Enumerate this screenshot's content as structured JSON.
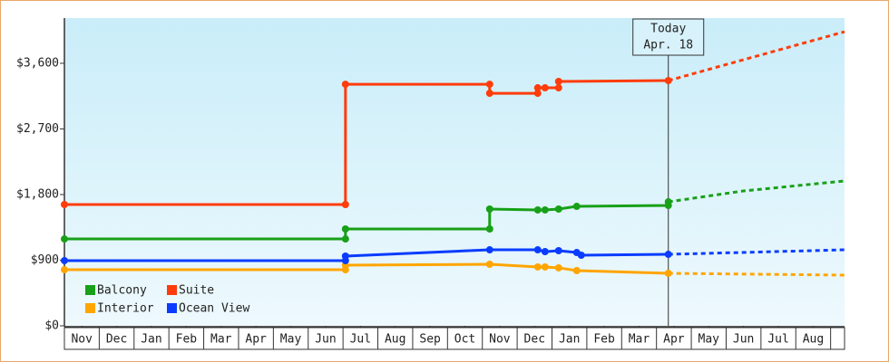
{
  "chart_data": {
    "type": "line",
    "xlim": [
      0,
      22.4
    ],
    "ylim": [
      0,
      4220
    ],
    "xticks": [
      {
        "value": 0.5,
        "label": "Nov"
      },
      {
        "value": 1.5,
        "label": "Dec"
      },
      {
        "value": 2.5,
        "label": "Jan"
      },
      {
        "value": 3.5,
        "label": "Feb"
      },
      {
        "value": 4.5,
        "label": "Mar"
      },
      {
        "value": 5.5,
        "label": "Apr"
      },
      {
        "value": 6.5,
        "label": "May"
      },
      {
        "value": 7.5,
        "label": "Jun"
      },
      {
        "value": 8.5,
        "label": "Jul"
      },
      {
        "value": 9.5,
        "label": "Aug"
      },
      {
        "value": 10.5,
        "label": "Sep"
      },
      {
        "value": 11.5,
        "label": "Oct"
      },
      {
        "value": 12.5,
        "label": "Nov"
      },
      {
        "value": 13.5,
        "label": "Dec"
      },
      {
        "value": 14.5,
        "label": "Jan"
      },
      {
        "value": 15.5,
        "label": "Feb"
      },
      {
        "value": 16.5,
        "label": "Mar"
      },
      {
        "value": 17.5,
        "label": "Apr"
      },
      {
        "value": 18.5,
        "label": "May"
      },
      {
        "value": 19.5,
        "label": "Jun"
      },
      {
        "value": 20.5,
        "label": "Jul"
      },
      {
        "value": 21.5,
        "label": "Aug"
      }
    ],
    "yticks": [
      {
        "value": 0,
        "label": "$0"
      },
      {
        "value": 900,
        "label": "$900"
      },
      {
        "value": 1800,
        "label": "$1,800"
      },
      {
        "value": 2700,
        "label": "$2,700"
      },
      {
        "value": 3600,
        "label": "$3,600"
      }
    ],
    "annotation": {
      "x": 17.34,
      "lines": [
        "Today",
        "Apr. 18"
      ]
    },
    "series": [
      {
        "name": "Balcony",
        "color": "#18a018",
        "x": [
          0,
          8.07,
          8.07,
          12.21,
          12.21,
          13.59,
          13.8,
          14.19,
          14.71,
          17.34,
          17.34
        ],
        "values": [
          1191,
          1191,
          1328,
          1328,
          1601,
          1589,
          1589,
          1601,
          1638,
          1650,
          1700
        ],
        "forecast": {
          "x": [
            17.34,
            19.5,
            22.4
          ],
          "values": [
            1700,
            1850,
            1986
          ]
        }
      },
      {
        "name": "Suite",
        "color": "#ff3c0a",
        "x": [
          0,
          8.07,
          8.07,
          12.21,
          12.21,
          13.59,
          13.59,
          13.8,
          14.19,
          14.19,
          17.34
        ],
        "values": [
          1663,
          1663,
          3313,
          3313,
          3189,
          3189,
          3264,
          3264,
          3264,
          3351,
          3363
        ],
        "forecast": {
          "x": [
            17.34,
            22.4
          ],
          "values": [
            3363,
            4033
          ]
        }
      },
      {
        "name": "Interior",
        "color": "#ffa500",
        "x": [
          0,
          8.07,
          8.07,
          12.21,
          13.59,
          13.8,
          14.19,
          14.71,
          17.34
        ],
        "values": [
          769,
          769,
          831,
          844,
          807,
          807,
          795,
          757,
          720
        ],
        "forecast": {
          "x": [
            17.34,
            22.4
          ],
          "values": [
            720,
            695
          ]
        }
      },
      {
        "name": "Ocean View",
        "color": "#0a3cff",
        "x": [
          0,
          8.07,
          8.07,
          12.21,
          13.59,
          13.8,
          14.19,
          14.71,
          14.84,
          17.34
        ],
        "values": [
          894,
          894,
          956,
          1042,
          1042,
          1017,
          1030,
          1005,
          968,
          980
        ],
        "forecast": {
          "x": [
            17.34,
            22.4
          ],
          "values": [
            980,
            1042
          ]
        }
      }
    ]
  }
}
